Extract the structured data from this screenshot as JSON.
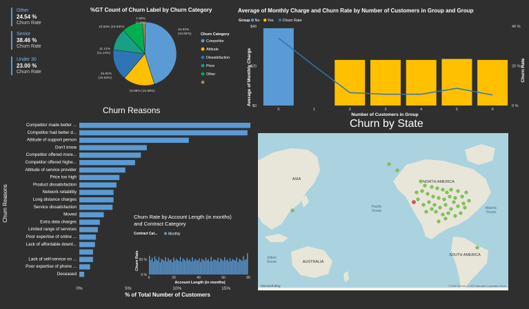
{
  "kpis": [
    {
      "category": "Other",
      "value": "24.54 %",
      "label": "Churn Rate"
    },
    {
      "category": "Senior",
      "value": "38.46 %",
      "label": "Churn Rate"
    },
    {
      "category": "Under 30",
      "value": "23.00 %",
      "label": "Churn Rate"
    }
  ],
  "colors": {
    "blue": "#5b9bd5",
    "navy": "#2e75b6",
    "yellow": "#ffc000",
    "green": "#00b050",
    "teal": "#17a085",
    "brown": "#a5875a",
    "bg": "#2f2f2f"
  },
  "chart_data": [
    {
      "type": "pie",
      "title": "%GT Count of Churn Label by Churn Category",
      "legend_title": "Churn Category",
      "legend_position": "right",
      "slices": [
        {
          "name": "Competitor",
          "value": 44.82,
          "label": "44.82%",
          "sublabel": "(44.82%)",
          "color": "#5b9bd5"
        },
        {
          "name": "Attitude",
          "value": 15.98,
          "label": "15.98% (15.98%)",
          "color": "#ffc000"
        },
        {
          "name": "Dissatisfaction",
          "value": 15.92,
          "label": "15.92%",
          "sublabel": "(15.92%)",
          "color": "#2e75b6"
        },
        {
          "name": "Price",
          "value": 11.14,
          "label": "11.14%",
          "sublabel": "(11.14%)",
          "color": "#17a085"
        },
        {
          "name": "Other",
          "value": 10.63,
          "label": "10.63% (10.63%)",
          "color": "#00b050"
        },
        {
          "name": "",
          "value": 1.5,
          "label": "1.50%",
          "sublabel": "(1.5%)",
          "color": "#a5875a"
        }
      ]
    },
    {
      "type": "bar",
      "title": "Average of Monthly Charge and Churn Rate by Number of Customers in Group and Group",
      "legend_title": "Group",
      "legend": [
        {
          "name": "No",
          "color": "#5b9bd5"
        },
        {
          "name": "Yes",
          "color": "#ffc000"
        },
        {
          "name": "Churn Rate",
          "color": "#2e75b6"
        }
      ],
      "categories": [
        "0",
        "1",
        "2",
        "3",
        "4",
        "5",
        "6"
      ],
      "series": [
        {
          "name": "No",
          "values": [
            39,
            null,
            null,
            null,
            null,
            null,
            null
          ]
        },
        {
          "name": "Yes",
          "values": [
            null,
            null,
            23,
            23,
            23,
            23.5,
            23
          ]
        },
        {
          "name": "Churn Rate",
          "values": [
            34.0,
            20.0,
            6.5,
            5.7,
            5.7,
            8.7,
            5.3
          ]
        }
      ],
      "xlabel": "Number of Customers in Group",
      "ylabel": "Average of Monthly Charge",
      "ylabel_right": "Churn Rate",
      "y_ticks": [
        "$0",
        "$20",
        "$40"
      ],
      "y_right_ticks": [
        "0 %",
        "20 %",
        "40 %"
      ],
      "ylim": [
        0,
        40
      ]
    },
    {
      "type": "bar",
      "orientation": "horizontal",
      "title": "Churn Reasons",
      "ylabel": "Churn Reasons",
      "xlabel": "% of Total Number of Customers",
      "x_ticks": [
        "0%",
        "5%",
        "10%",
        "15%"
      ],
      "xlim": [
        0,
        17
      ],
      "categories": [
        "Competitor made better ...",
        "Competitor had better d...",
        "Attitude of support person",
        "Don't know",
        "Competitor offered more...",
        "Competitor offered highe...",
        "Attitude of service provider",
        "Price too high",
        "Product dissatisfaction",
        "Network reliability",
        "Long distance charges",
        "Service dissatisfaction",
        "Moved",
        "Extra data charges",
        "Limited range of services",
        "Poor expertise of online ...",
        "Lack of affordable downl...",
        "",
        "Lack of self-service on ...",
        "Poor expertise of phone ...",
        "Deceased"
      ],
      "values": [
        17.5,
        17.2,
        11.2,
        6.9,
        6.3,
        5.7,
        4.7,
        4.1,
        3.8,
        3.5,
        3.5,
        3.4,
        2.5,
        2.1,
        1.9,
        1.7,
        1.6,
        1.4,
        1.4,
        1.1,
        0.5
      ]
    },
    {
      "type": "bar",
      "title": "Churn Rate by Account Length (in months) and Contract Category",
      "legend_title": "Contract Cat...",
      "legend": [
        {
          "name": "Monthly",
          "color": "#5b9bd5"
        }
      ],
      "xlabel": "Account Length (in months)",
      "ylabel": "Churn Rate",
      "x_ticks": [
        "0",
        "20",
        "40",
        "60",
        "80"
      ],
      "y_ticks": [
        "0 %",
        "50 %"
      ],
      "xlim": [
        0,
        80
      ],
      "ylim": [
        0,
        100
      ],
      "values": [
        62,
        48,
        55,
        42,
        60,
        50,
        46,
        58,
        40,
        52,
        49,
        45,
        57,
        43,
        54,
        47,
        50,
        41,
        56,
        46,
        52,
        48,
        44,
        58,
        42,
        53,
        49,
        45,
        55,
        47,
        50,
        43,
        57,
        44,
        51,
        48,
        46,
        54,
        42,
        52,
        49,
        45,
        56,
        47,
        50,
        43,
        58,
        44,
        51,
        48,
        46,
        55,
        42,
        53,
        49,
        45,
        57,
        47,
        50,
        43,
        54,
        44,
        51,
        48,
        46,
        56,
        42,
        52,
        49,
        45,
        60,
        47,
        50,
        70
      ]
    }
  ],
  "map": {
    "title": "Churn by State",
    "labels": {
      "asia": "ASIA",
      "north_america": "NORTH AMERICA",
      "south_america": "SOUTH AMERICA",
      "australia": "AUSTRALIA",
      "pacific": "Pacific\nOcean",
      "atlantic": "Atlantic\nOcean",
      "indian": "Indian\nOcean"
    },
    "logo": "Microsoft Bing",
    "copyright": "© 2022 TomTom, © 2022 Microsoft Corporation  Terms",
    "point_colors": {
      "normal": "#7ec850",
      "high": "#e05050"
    }
  }
}
